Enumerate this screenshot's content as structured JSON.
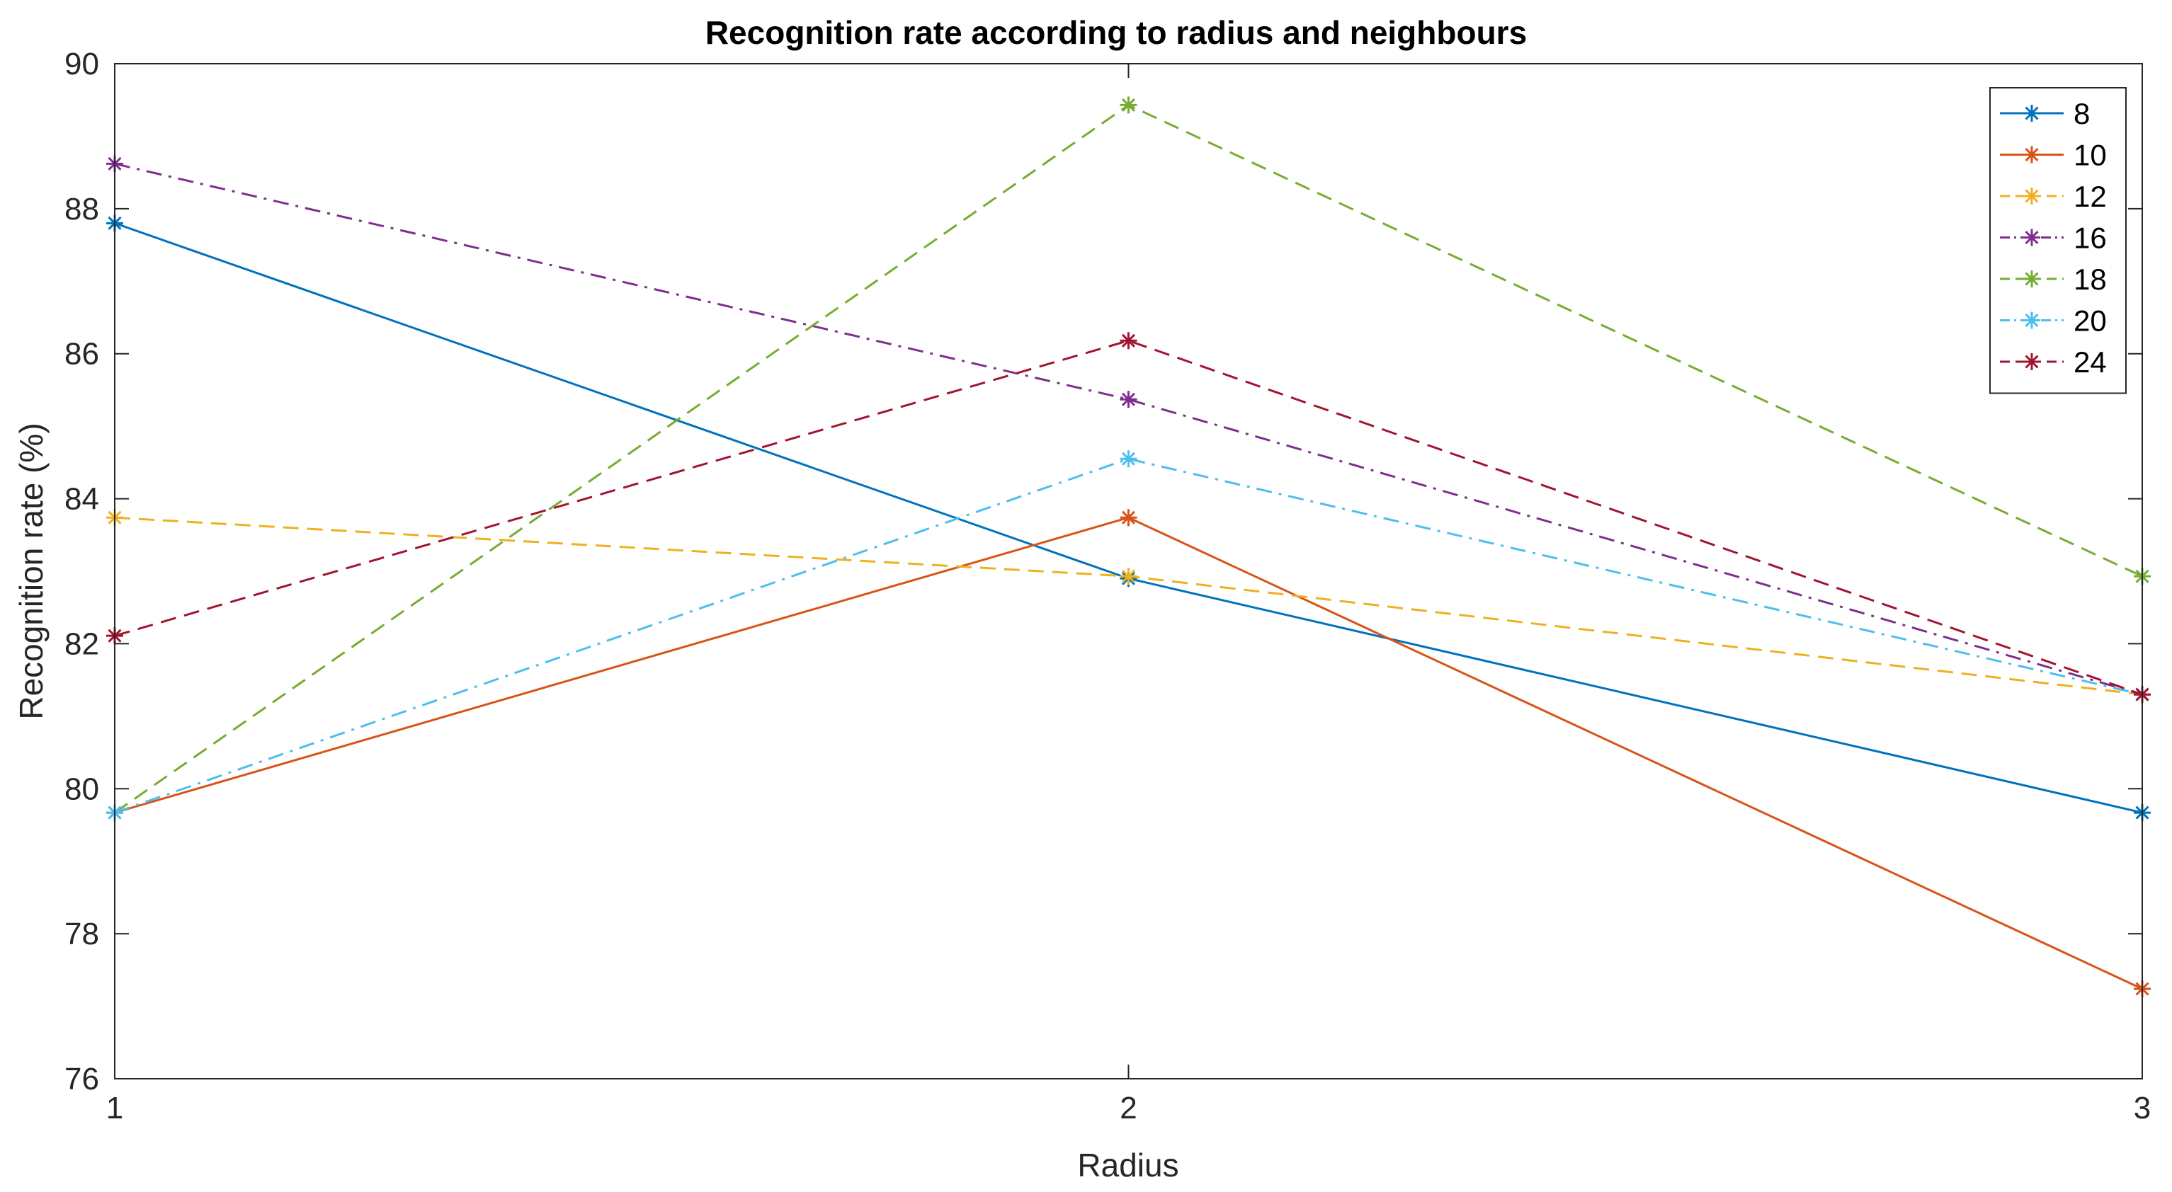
{
  "chart_data": {
    "type": "line",
    "title": "Recognition rate according to radius and neighbours",
    "xlabel": "Radius",
    "ylabel": "Recognition rate (%)",
    "x": [
      1,
      2,
      3
    ],
    "xlim": [
      1,
      3
    ],
    "ylim": [
      76,
      90
    ],
    "xticks": [
      1,
      2,
      3
    ],
    "yticks": [
      76,
      78,
      80,
      82,
      84,
      86,
      88,
      90
    ],
    "grid": false,
    "legend_position": "top-right",
    "series": [
      {
        "name": "8",
        "values": [
          87.8,
          82.9,
          79.67
        ],
        "color": "#0072BD",
        "dash": "solid"
      },
      {
        "name": "10",
        "values": [
          79.67,
          83.74,
          77.24
        ],
        "color": "#D95319",
        "dash": "solid"
      },
      {
        "name": "12",
        "values": [
          83.74,
          82.93,
          81.3
        ],
        "color": "#EDB120",
        "dash": "dashed"
      },
      {
        "name": "16",
        "values": [
          88.62,
          85.37,
          81.3
        ],
        "color": "#7E2F8E",
        "dash": "dashdot"
      },
      {
        "name": "18",
        "values": [
          79.67,
          89.43,
          82.93
        ],
        "color": "#77AC30",
        "dash": "dashed"
      },
      {
        "name": "20",
        "values": [
          79.67,
          84.55,
          81.3
        ],
        "color": "#4DBEEE",
        "dash": "dashdot"
      },
      {
        "name": "24",
        "values": [
          82.11,
          86.18,
          81.3
        ],
        "color": "#A2142F",
        "dash": "dashed"
      }
    ]
  }
}
